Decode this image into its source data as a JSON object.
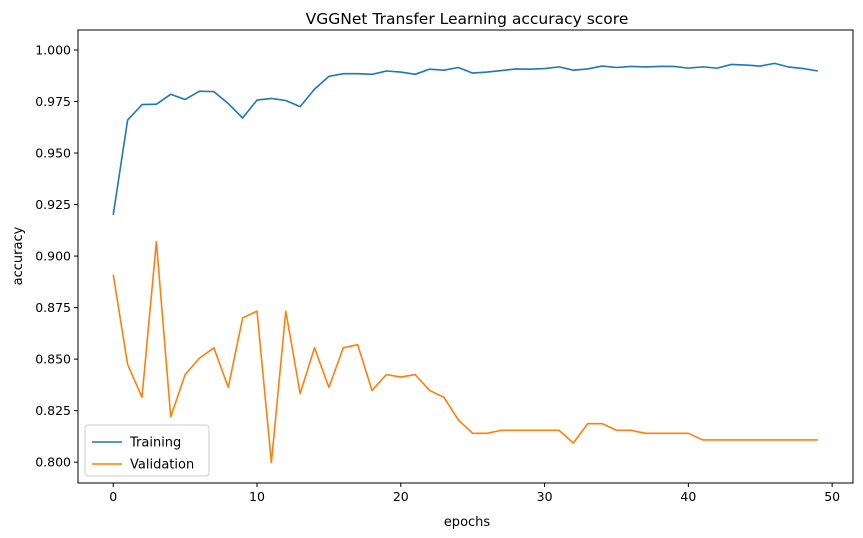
{
  "chart_data": {
    "type": "line",
    "title": "VGGNet Transfer Learning accuracy score",
    "xlabel": "epochs",
    "ylabel": "accuracy",
    "xlim": [
      -2.45,
      51.45
    ],
    "ylim": [
      0.7899,
      1.0097
    ],
    "x_ticks": [
      0,
      10,
      20,
      30,
      40,
      50
    ],
    "x_tick_labels": [
      "0",
      "10",
      "20",
      "30",
      "40",
      "50"
    ],
    "y_ticks": [
      0.8,
      0.825,
      0.85,
      0.875,
      0.9,
      0.925,
      0.95,
      0.975,
      1.0
    ],
    "y_tick_labels": [
      "0.800",
      "0.825",
      "0.850",
      "0.875",
      "0.900",
      "0.925",
      "0.950",
      "0.975",
      "1.000"
    ],
    "grid": false,
    "legend_position": "lower-left",
    "x": [
      0,
      1,
      2,
      3,
      4,
      5,
      6,
      7,
      8,
      9,
      10,
      11,
      12,
      13,
      14,
      15,
      16,
      17,
      18,
      19,
      20,
      21,
      22,
      23,
      24,
      25,
      26,
      27,
      28,
      29,
      30,
      31,
      32,
      33,
      34,
      35,
      36,
      37,
      38,
      39,
      40,
      41,
      42,
      43,
      44,
      45,
      46,
      47,
      48,
      49
    ],
    "series": [
      {
        "name": "Training",
        "color": "#1f77b4",
        "values": [
          0.92,
          0.966,
          0.9735,
          0.9737,
          0.9785,
          0.976,
          0.98,
          0.9798,
          0.974,
          0.967,
          0.9757,
          0.9765,
          0.9755,
          0.9725,
          0.981,
          0.9872,
          0.9885,
          0.9885,
          0.9882,
          0.9898,
          0.9893,
          0.9882,
          0.9907,
          0.9902,
          0.9915,
          0.9888,
          0.9893,
          0.99,
          0.9908,
          0.9907,
          0.991,
          0.9918,
          0.9902,
          0.9908,
          0.9922,
          0.9915,
          0.992,
          0.9918,
          0.992,
          0.992,
          0.9912,
          0.9918,
          0.9912,
          0.993,
          0.9927,
          0.9922,
          0.9935,
          0.9917,
          0.991,
          0.9898
        ]
      },
      {
        "name": "Validation",
        "color": "#ff7f0e",
        "values": [
          0.891,
          0.8475,
          0.8315,
          0.907,
          0.822,
          0.8425,
          0.8505,
          0.8555,
          0.8363,
          0.87,
          0.8733,
          0.7998,
          0.8733,
          0.8333,
          0.8555,
          0.8363,
          0.8555,
          0.857,
          0.8348,
          0.8425,
          0.8413,
          0.8425,
          0.8348,
          0.8315,
          0.8205,
          0.814,
          0.814,
          0.8155,
          0.8155,
          0.8155,
          0.8155,
          0.8155,
          0.8093,
          0.8187,
          0.8187,
          0.8155,
          0.8155,
          0.814,
          0.814,
          0.814,
          0.814,
          0.8108,
          0.8108,
          0.8108,
          0.8108,
          0.8108,
          0.8108,
          0.8108,
          0.8108,
          0.8108
        ]
      }
    ]
  }
}
